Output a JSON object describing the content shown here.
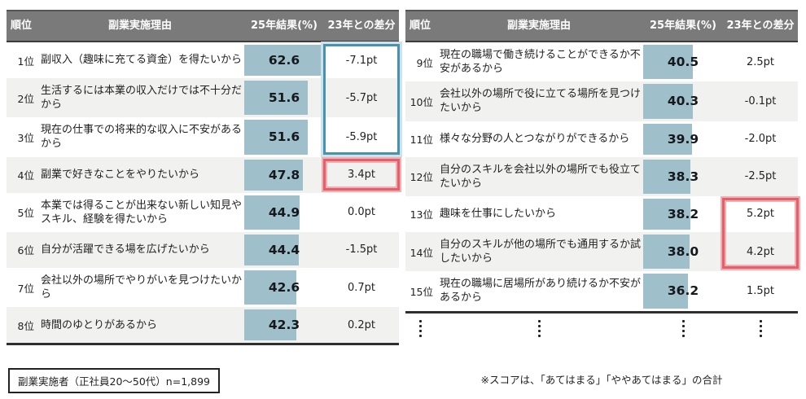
{
  "columns": [
    "順位",
    "副業実施理由",
    "25年結果(%)",
    "23年との差分"
  ],
  "chart_data": [
    {
      "type": "bar",
      "panel": "left",
      "orientation": "horizontal",
      "bar_axis_max": 65,
      "value_unit": "%",
      "diff_unit": "pt",
      "rows": [
        {
          "rank": "1位",
          "reason": "副収入（趣味に充てる資金）を得たいから",
          "value_pct": 62.6,
          "diff_pt": -7.1
        },
        {
          "rank": "2位",
          "reason": "生活するには本業の収入だけでは不十分だから",
          "value_pct": 51.6,
          "diff_pt": -5.7
        },
        {
          "rank": "3位",
          "reason": "現在の仕事での将来的な収入に不安があるから",
          "value_pct": 51.6,
          "diff_pt": -5.9
        },
        {
          "rank": "4位",
          "reason": "副業で好きなことをやりたいから",
          "value_pct": 47.8,
          "diff_pt": 3.4
        },
        {
          "rank": "5位",
          "reason": "本業では得ることが出来ない新しい知見やスキル、経験を得たいから",
          "value_pct": 44.9,
          "diff_pt": 0.0
        },
        {
          "rank": "6位",
          "reason": "自分が活躍できる場を広げたいから",
          "value_pct": 44.4,
          "diff_pt": -1.5
        },
        {
          "rank": "7位",
          "reason": "会社以外の場所でやりがいを見つけたいから",
          "value_pct": 42.6,
          "diff_pt": 0.7
        },
        {
          "rank": "8位",
          "reason": "時間のゆとりがあるから",
          "value_pct": 42.3,
          "diff_pt": 0.2
        }
      ],
      "continuation_dots": false
    },
    {
      "type": "bar",
      "panel": "right",
      "orientation": "horizontal",
      "bar_axis_max": 65,
      "value_unit": "%",
      "diff_unit": "pt",
      "rows": [
        {
          "rank": "9位",
          "reason": "現在の職場で働き続けることができるか不安があるから",
          "value_pct": 40.5,
          "diff_pt": 2.5
        },
        {
          "rank": "10位",
          "reason": "会社以外の場所で役に立てる場所を見つけたいから",
          "value_pct": 40.3,
          "diff_pt": -0.1
        },
        {
          "rank": "11位",
          "reason": "様々な分野の人とつながりができるから",
          "value_pct": 39.9,
          "diff_pt": -2.0
        },
        {
          "rank": "12位",
          "reason": "自分のスキルを会社以外の場所でも役立てたいから",
          "value_pct": 38.3,
          "diff_pt": -2.5
        },
        {
          "rank": "13位",
          "reason": "趣味を仕事にしたいから",
          "value_pct": 38.2,
          "diff_pt": 5.2
        },
        {
          "rank": "14位",
          "reason": "自分のスキルが他の場所でも通用するか試したいから",
          "value_pct": 38.0,
          "diff_pt": 4.2
        },
        {
          "rank": "15位",
          "reason": "現在の職場に居場所があり続けるか不安があるから",
          "value_pct": 36.2,
          "diff_pt": 1.5
        }
      ],
      "continuation_dots": true
    }
  ],
  "highlights": [
    {
      "table": 0,
      "from_row": 0,
      "to_row": 2,
      "style": "blue"
    },
    {
      "table": 0,
      "from_row": 3,
      "to_row": 3,
      "style": "red"
    },
    {
      "table": 1,
      "from_row": 4,
      "to_row": 5,
      "style": "red"
    }
  ],
  "footnotes": {
    "left_box": "副業実施者（正社員20～50代）n=1,899",
    "right_note": "※スコアは、「あてはまる」「ややあてはまる」の合計"
  },
  "colors": {
    "header_bg": "#7a7a7a",
    "alt_row": "#f1f1f0",
    "bar": "#9fbfcb",
    "highlight_blue": "#4792ae",
    "highlight_blue_light": "#cde2ea",
    "highlight_red": "#e2606a",
    "highlight_red_light": "#f2aeb3"
  }
}
